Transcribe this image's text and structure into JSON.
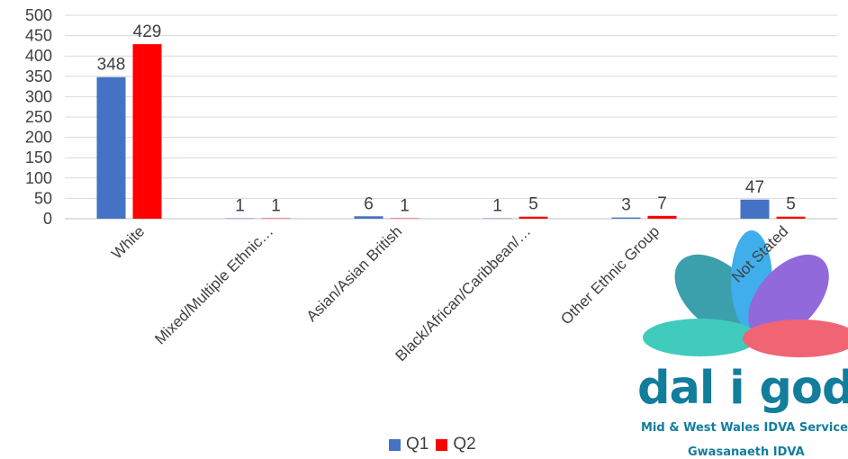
{
  "chart_data": {
    "type": "bar",
    "categories": [
      "White",
      "Mixed/Multiple Ethnic…",
      "Asian/Asian British",
      "Black/African/Caribbean/…",
      "Other Ethnic Group",
      "Not Stated"
    ],
    "series": [
      {
        "name": "Q1",
        "values": [
          348,
          1,
          6,
          1,
          3,
          47
        ],
        "color": "#4472c4"
      },
      {
        "name": "Q2",
        "values": [
          429,
          1,
          1,
          5,
          7,
          5
        ],
        "color": "#ff0000"
      }
    ],
    "ylim": [
      0,
      500
    ],
    "yticks": [
      0,
      50,
      100,
      150,
      200,
      250,
      300,
      350,
      400,
      450,
      500
    ],
    "grid": true,
    "legend_position": "bottom",
    "title": "",
    "xlabel": "",
    "ylabel": ""
  },
  "logo": {
    "name": "dal i god",
    "subtitle": "Mid & West Wales IDVA Service",
    "subtitle2": "Gwasanaeth IDVA",
    "colors": {
      "teal": "#1fc3b2",
      "red": "#ee4a5c",
      "purple": "#7f4fd4",
      "blue": "#1ea0e8",
      "dark": "#137d9c"
    }
  }
}
